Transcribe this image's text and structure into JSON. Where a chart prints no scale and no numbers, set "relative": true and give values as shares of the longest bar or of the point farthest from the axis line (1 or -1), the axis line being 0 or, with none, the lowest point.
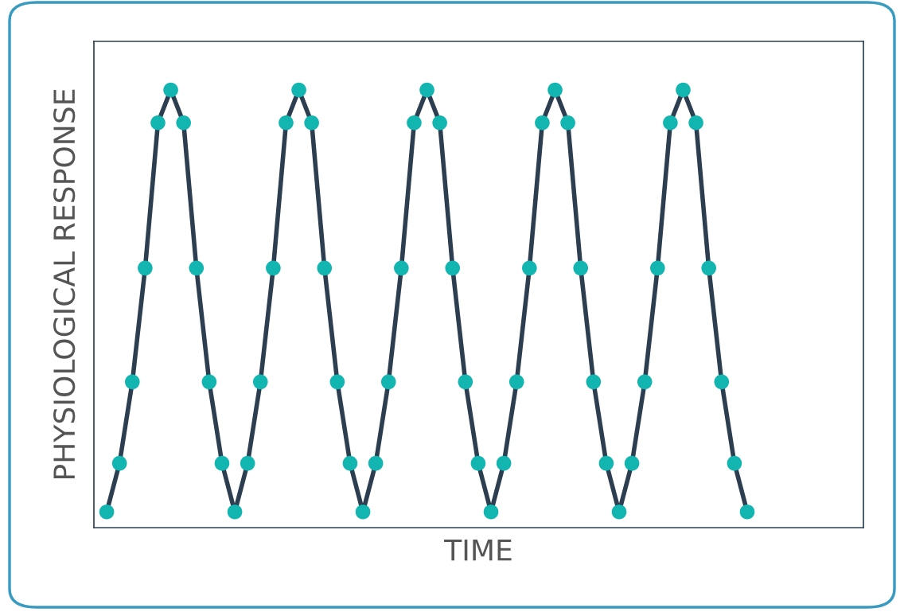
{
  "chart_data": {
    "type": "line",
    "relative": true,
    "xlabel": "TIME",
    "ylabel": "PHYSIOLOGICAL RESPONSE",
    "categories": [
      null,
      null,
      null,
      null,
      null,
      null,
      null,
      null,
      null,
      null,
      null,
      null,
      null,
      null,
      null,
      null,
      null,
      null,
      null,
      null,
      null,
      null,
      null,
      null,
      null,
      null,
      null,
      null,
      null,
      null,
      null,
      null,
      null,
      null,
      null,
      null,
      null,
      null,
      null,
      null,
      null,
      null,
      null,
      null,
      null,
      null,
      null,
      null,
      null,
      null,
      null
    ],
    "series": [
      {
        "color": "#2c3e50",
        "colors": [
          "#13b5b1",
          "#13b5b1",
          "#13b5b1",
          "#13b5b1",
          "#13b5b1",
          "#13b5b1",
          "#13b5b1",
          "#13b5b1",
          "#13b5b1",
          "#13b5b1",
          "#13b5b1",
          "#13b5b1",
          "#13b5b1",
          "#13b5b1",
          "#13b5b1",
          "#13b5b1",
          "#13b5b1",
          "#13b5b1",
          "#13b5b1",
          "#13b5b1",
          "#13b5b1",
          "#13b5b1",
          "#13b5b1",
          "#13b5b1",
          "#13b5b1",
          "#13b5b1",
          "#13b5b1",
          "#13b5b1",
          "#13b5b1",
          "#13b5b1",
          "#13b5b1",
          "#13b5b1",
          "#13b5b1",
          "#13b5b1",
          "#13b5b1",
          "#13b5b1",
          "#13b5b1",
          "#13b5b1",
          "#13b5b1",
          "#13b5b1",
          "#13b5b1",
          "#13b5b1",
          "#13b5b1",
          "#13b5b1",
          "#13b5b1",
          "#13b5b1",
          "#13b5b1",
          "#13b5b1",
          "#13b5b1",
          "#13b5b1",
          "#13b5b1"
        ],
        "values": [
          0.036,
          0.147,
          0.333,
          0.593,
          0.925,
          1,
          0.925,
          0.593,
          0.333,
          0.147,
          0.036,
          0.147,
          0.333,
          0.593,
          0.925,
          1,
          0.925,
          0.593,
          0.333,
          0.147,
          0.036,
          0.147,
          0.333,
          0.593,
          0.925,
          1,
          0.925,
          0.593,
          0.333,
          0.147,
          0.036,
          0.147,
          0.333,
          0.593,
          0.925,
          1,
          0.925,
          0.593,
          0.333,
          0.147,
          0.036,
          0.147,
          0.333,
          0.593,
          0.925,
          1,
          0.925,
          0.593,
          0.333,
          0.147,
          0.036
        ]
      }
    ],
    "marker": "circle",
    "line_style": "solid",
    "tick_labels": false
  }
}
